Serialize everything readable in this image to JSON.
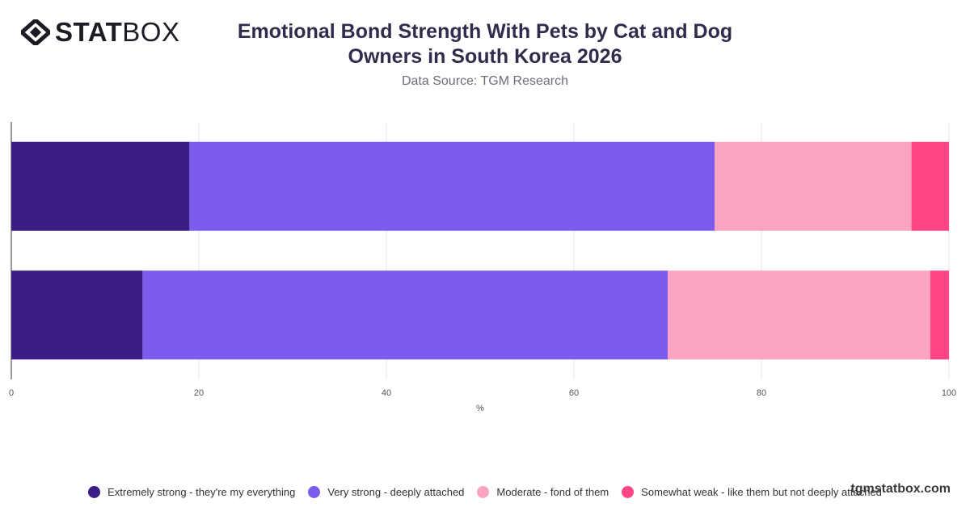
{
  "brand": {
    "bold": "STAT",
    "light": "BOX"
  },
  "header": {
    "title_line1": "Emotional Bond Strength With Pets by Cat and Dog",
    "title_line2": "Owners in South Korea 2026",
    "subtitle": "Data Source: TGM Research"
  },
  "watermark": "tgmstatbox.com",
  "colors": {
    "extremely_strong": "#3a1d85",
    "very_strong": "#7b5cec",
    "moderate": "#fba3c2",
    "somewhat_weak": "#ff4583"
  },
  "chart_data": {
    "type": "bar",
    "orientation": "horizontal",
    "stacked": true,
    "title": "Emotional Bond Strength With Pets by Cat and Dog Owners in South Korea 2026",
    "subtitle": "Data Source: TGM Research",
    "xlabel": "%",
    "xlim": [
      0,
      100
    ],
    "xticks": [
      "0",
      "20",
      "40",
      "60",
      "80",
      "100"
    ],
    "grid": true,
    "legend_position": "bottom",
    "categories": [
      "",
      ""
    ],
    "series": [
      {
        "name": "Extremely strong - they're my everything",
        "color": "#3a1d85",
        "values": [
          19,
          14
        ]
      },
      {
        "name": "Very strong - deeply attached",
        "color": "#7b5cec",
        "values": [
          56,
          56
        ]
      },
      {
        "name": "Moderate - fond of them",
        "color": "#fba3c2",
        "values": [
          21,
          28
        ]
      },
      {
        "name": "Somewhat weak - like them but not deeply attached",
        "color": "#ff4583",
        "values": [
          4,
          2
        ]
      }
    ]
  }
}
